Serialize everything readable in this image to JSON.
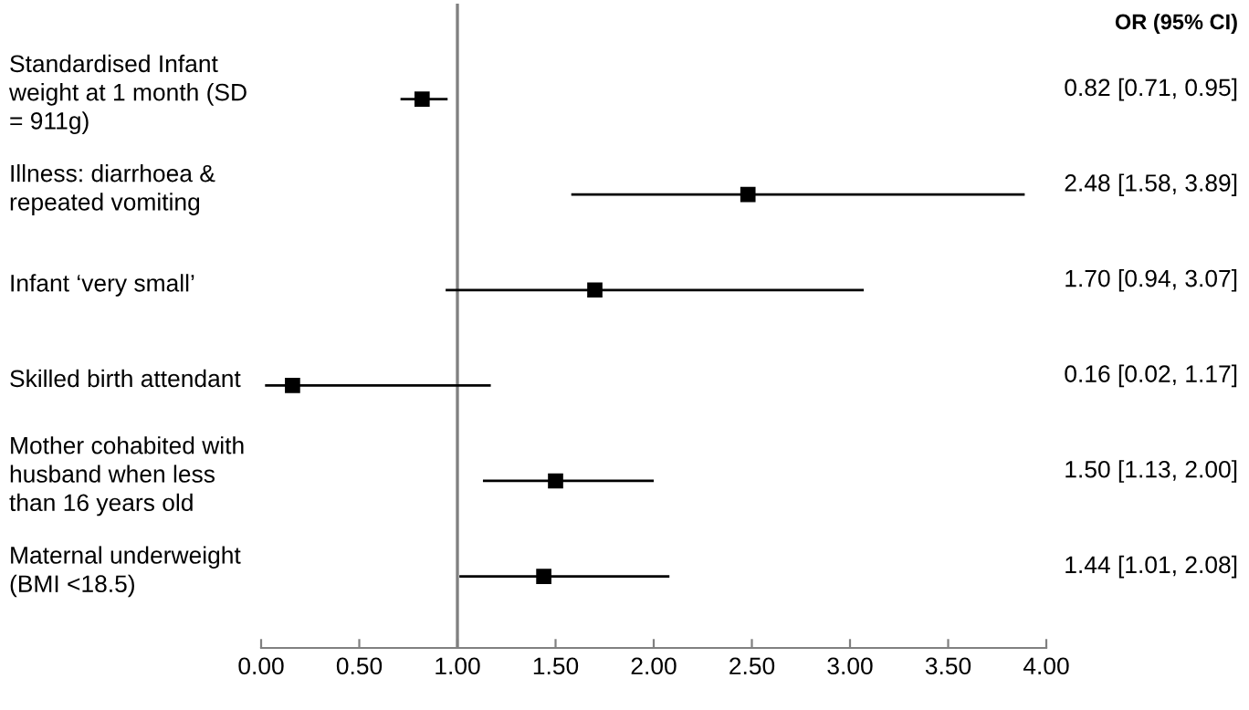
{
  "chart_data": {
    "type": "scatter",
    "orientation": "horizontal",
    "categories": [
      "Standardised Infant\nweight at 1 month (SD\n= 911g)",
      "Illness: diarrhoea &\nrepeated vomiting",
      "Infant ‘very small’",
      "Skilled birth attendant",
      "Mother cohabited with\nhusband when less\nthan 16 years old",
      "Maternal underweight\n(BMI <18.5)"
    ],
    "values": [
      0.82,
      2.48,
      1.7,
      0.16,
      1.5,
      1.44
    ],
    "errors": [
      [
        0.71,
        0.95
      ],
      [
        1.58,
        3.89
      ],
      [
        0.94,
        3.07
      ],
      [
        0.02,
        1.17
      ],
      [
        1.13,
        2.0
      ],
      [
        1.01,
        2.08
      ]
    ],
    "value_labels": [
      "0.82 [0.71, 0.95]",
      "2.48 [1.58, 3.89]",
      "1.70 [0.94, 3.07]",
      "0.16 [0.02, 1.17]",
      "1.50 [1.13, 2.00]",
      "1.44 [1.01, 2.08]"
    ],
    "color": "#000000",
    "marker": "square",
    "grid": false,
    "xlim": [
      0,
      4
    ],
    "xticks": [
      {
        "value": 0,
        "label": "0.00"
      },
      {
        "value": 0.5,
        "label": "0.50"
      },
      {
        "value": 1,
        "label": "1.00"
      },
      {
        "value": 1.5,
        "label": "1.50"
      },
      {
        "value": 2,
        "label": "2.00"
      },
      {
        "value": 2.5,
        "label": "2.50"
      },
      {
        "value": 3,
        "label": "3.00"
      },
      {
        "value": 3.5,
        "label": "3.50"
      },
      {
        "value": 4,
        "label": "4.00"
      }
    ],
    "ref_lines": [
      {
        "axis": "x",
        "value": 1,
        "color": "#808080"
      }
    ],
    "annotations": [
      "OR (95% CI)"
    ]
  }
}
